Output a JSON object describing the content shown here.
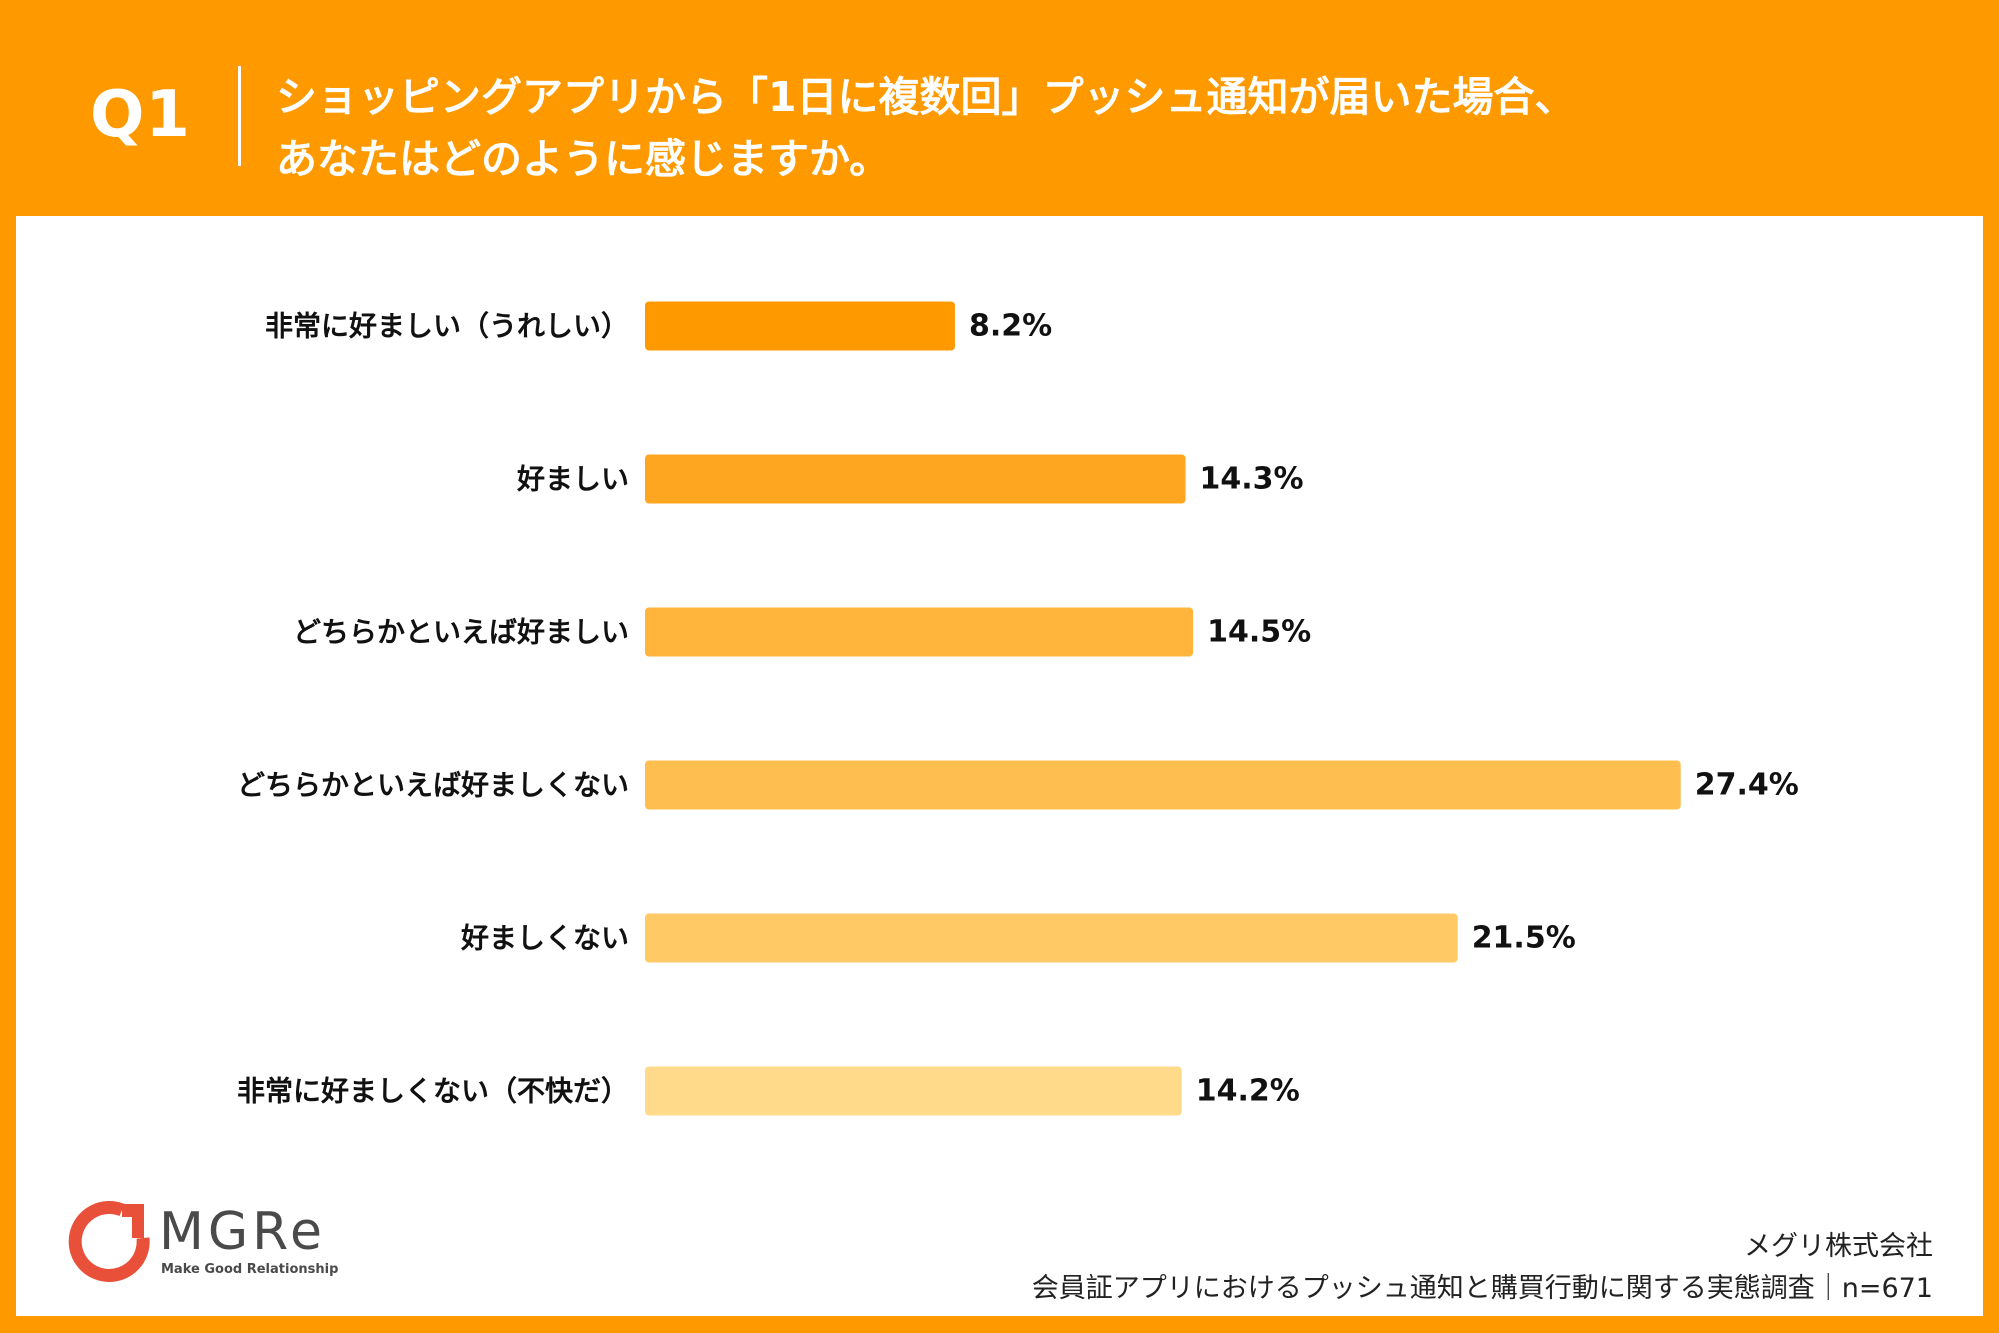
{
  "header": {
    "q_label": "Q1",
    "question_line1": "ショッピングアプリから「1日に複数回」プッシュ通知が届いた場合、",
    "question_line2": "あなたはどのように感じますか。"
  },
  "chart_data": {
    "type": "bar",
    "orientation": "horizontal",
    "categories": [
      "非常に好ましい（うれしい）",
      "好ましい",
      "どちらかといえば好ましい",
      "どちらかといえば好ましくない",
      "好ましくない",
      "非常に好ましくない（不快だ）"
    ],
    "values": [
      8.2,
      14.3,
      14.5,
      27.4,
      21.5,
      14.2
    ],
    "value_labels": [
      "8.2%",
      "14.3%",
      "14.5%",
      "27.4%",
      "21.5%",
      "14.2%"
    ],
    "unit": "%",
    "colors": [
      "#FF9900",
      "#FFA620",
      "#FFB43C",
      "#FFBE50",
      "#FFCA65",
      "#FFDA8A"
    ],
    "grid": false,
    "legend": "none"
  },
  "footer": {
    "company": "メグリ株式会社",
    "survey": "会員証アプリにおけるプッシュ通知と購買行動に関する実態調査｜n=671"
  },
  "logo": {
    "name": "MGRe",
    "tagline": "Make Good Relationship",
    "color": "#E8503A"
  }
}
